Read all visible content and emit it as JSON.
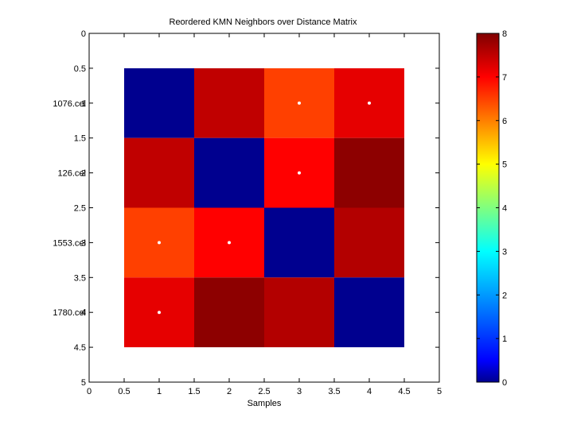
{
  "chart_data": {
    "type": "heatmap",
    "title": "Reordered KMN Neighbors over Distance Matrix",
    "xlabel": "Samples",
    "ylabel": "",
    "xlim": [
      0,
      5
    ],
    "ylim": [
      0,
      5
    ],
    "x_ticks": [
      "0",
      "0.5",
      "1",
      "1.5",
      "2",
      "2.5",
      "3",
      "3.5",
      "4",
      "4.5",
      "5"
    ],
    "y_ticks": [
      "0",
      "0.5",
      "1",
      "1.5",
      "2",
      "2.5",
      "3",
      "3.5",
      "4",
      "4.5",
      "5"
    ],
    "row_labels": [
      "1076.cel",
      "126.cel",
      "1553.cel",
      "1780.cel"
    ],
    "matrix": [
      [
        0.0,
        7.5,
        6.5,
        7.2
      ],
      [
        7.5,
        0.0,
        7.0,
        7.9
      ],
      [
        6.5,
        7.0,
        0.0,
        7.6
      ],
      [
        7.2,
        7.9,
        7.6,
        0.0
      ]
    ],
    "neighbor_markers": [
      {
        "x": 3,
        "y": 1
      },
      {
        "x": 4,
        "y": 1
      },
      {
        "x": 3,
        "y": 2
      },
      {
        "x": 1,
        "y": 3
      },
      {
        "x": 2,
        "y": 3
      },
      {
        "x": 1,
        "y": 4
      }
    ],
    "colorbar": {
      "colormap": "jet",
      "range": [
        0,
        8
      ],
      "ticks": [
        "0",
        "1",
        "2",
        "3",
        "4",
        "5",
        "6",
        "7",
        "8"
      ]
    },
    "grid": false,
    "marker_color": "#ffffff"
  }
}
